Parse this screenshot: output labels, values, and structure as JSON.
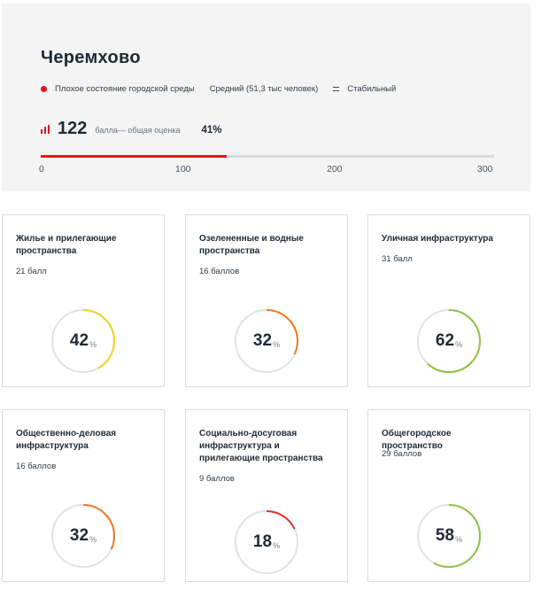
{
  "city": {
    "name": "Черемхово",
    "condition": "Плохое состояние городской среды",
    "size": "Средний (51,3 тыс человек)",
    "trend": "Стабильный",
    "status_color": "#e4141b"
  },
  "score": {
    "value": "122",
    "label": "балла— общая оценка",
    "percent_label": "41%",
    "percent": 41,
    "max": 300,
    "scale": [
      "0",
      "100",
      "200",
      "300"
    ]
  },
  "cards": [
    {
      "title": "Жилье и прилегающие пространства",
      "points": "21 балл",
      "value": "42",
      "percent": 42,
      "unit": "%",
      "color": "#f2d422"
    },
    {
      "title": "Озелененные и водные пространства",
      "points": "16 баллов",
      "value": "32",
      "percent": 32,
      "unit": "%",
      "color": "#f07a22"
    },
    {
      "title": "Уличная инфраструктура",
      "points": "31 балл",
      "value": "62",
      "percent": 62,
      "unit": "%",
      "color": "#8cc63f"
    },
    {
      "title": "Общественно-деловая инфраструктура",
      "points": "16 баллов",
      "value": "32",
      "percent": 32,
      "unit": "%",
      "color": "#f07a22"
    },
    {
      "title": "Социально-досуговая инфраструктура и прилегающие пространства",
      "points": "9 баллов",
      "value": "18",
      "percent": 18,
      "unit": "%",
      "color": "#e4302a"
    },
    {
      "title": "Общегородское пространство",
      "points": "29 баллов",
      "value": "58",
      "percent": 58,
      "unit": "%",
      "color": "#8cc63f"
    }
  ]
}
